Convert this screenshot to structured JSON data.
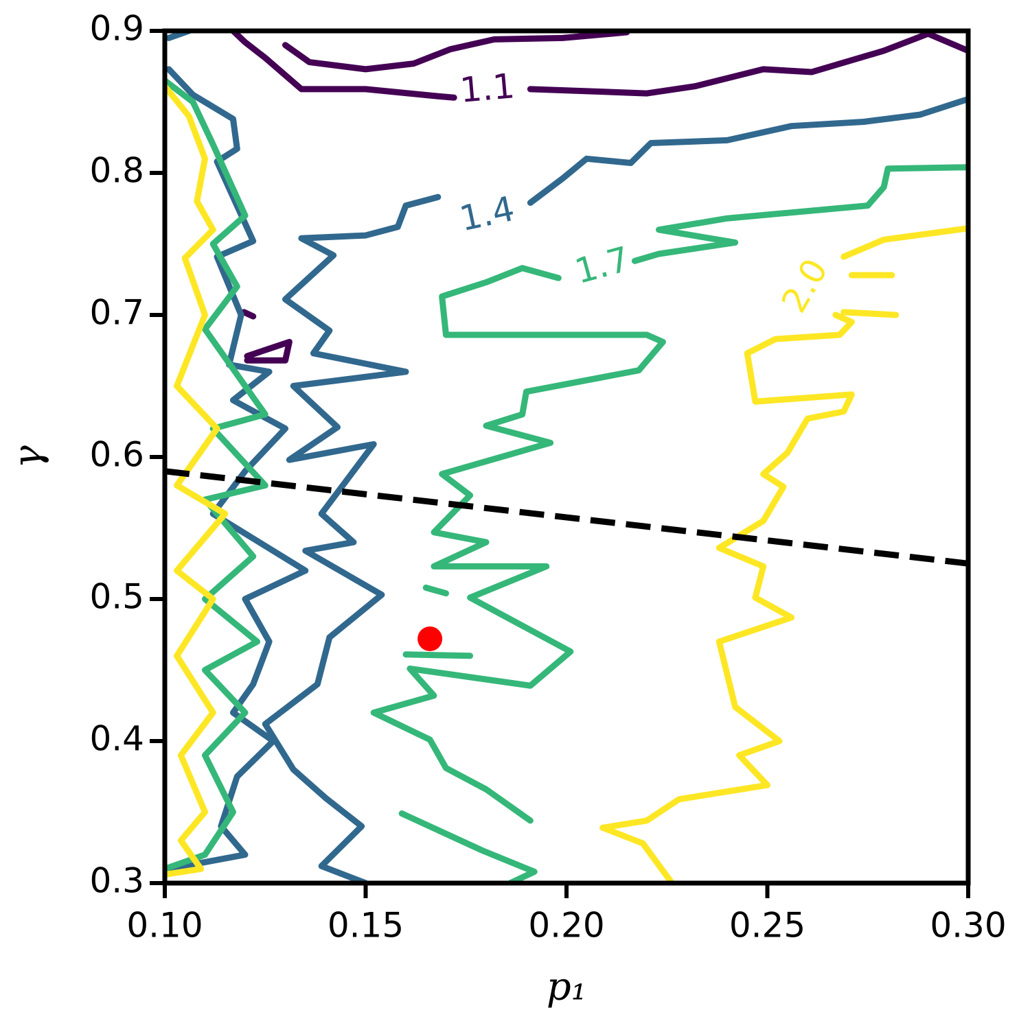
{
  "chart_data": {
    "type": "contour",
    "x_label": "p₁",
    "y_label": "γ",
    "xlim": [
      0.1,
      0.3
    ],
    "ylim": [
      0.3,
      0.9
    ],
    "xticks": [
      {
        "value": 0.1,
        "label": "0.10"
      },
      0.15,
      {
        "value": 0.2,
        "label": "0.20"
      },
      0.25,
      {
        "value": 0.3,
        "label": "0.30"
      }
    ],
    "yticks": [
      0.3,
      0.4,
      0.5,
      0.6,
      0.7,
      0.8,
      0.9
    ],
    "series": [
      {
        "name": "1.1",
        "color": "#440154",
        "x": [
          0.117,
          0.12,
          0.125,
          0.134,
          0.15,
          0.168,
          0.172,
          null,
          0.191,
          0.22,
          0.232,
          0.249,
          0.261,
          0.279,
          0.29,
          0.3,
          null,
          0.13,
          0.136,
          0.15,
          0.162,
          0.171,
          0.182,
          0.199,
          0.215,
          null,
          0.1205,
          0.131,
          0.13,
          0.1205,
          null,
          0.1197,
          0.122
        ],
        "y": [
          0.9,
          0.892,
          0.881,
          0.859,
          0.859,
          0.854,
          0.853,
          null,
          0.859,
          0.856,
          0.861,
          0.873,
          0.871,
          0.886,
          0.898,
          0.886,
          null,
          0.89,
          0.878,
          0.873,
          0.877,
          0.887,
          0.894,
          0.895,
          0.899,
          null,
          0.671,
          0.681,
          0.668,
          0.668,
          null,
          0.702,
          0.699
        ]
      },
      {
        "name": "1.4",
        "color": "#31688e",
        "x": [
          0.168,
          0.16,
          0.158,
          0.15,
          0.134,
          0.142,
          0.13,
          0.141,
          0.137,
          0.16,
          0.132,
          0.143,
          0.131,
          0.152,
          0.139,
          0.147,
          0.135,
          0.154,
          0.141,
          0.138,
          0.125,
          0.132,
          0.14,
          0.149,
          0.139,
          0.15,
          null,
          0.191,
          0.199,
          0.205,
          0.216,
          0.221,
          0.24,
          0.256,
          0.274,
          0.288,
          0.3,
          null,
          0.101,
          0.107,
          0.117,
          0.118,
          0.113,
          0.117,
          0.122,
          0.113,
          0.119,
          0.116,
          0.126,
          0.117,
          0.13,
          0.12,
          0.112,
          0.135,
          0.12,
          0.126,
          0.122,
          0.117,
          0.127,
          0.118,
          0.114,
          0.12,
          0.101,
          null,
          0.101,
          0.106
        ],
        "y": [
          0.783,
          0.777,
          0.762,
          0.756,
          0.754,
          0.742,
          0.711,
          0.689,
          0.673,
          0.66,
          0.65,
          0.621,
          0.598,
          0.609,
          0.56,
          0.54,
          0.534,
          0.503,
          0.473,
          0.44,
          0.412,
          0.38,
          0.36,
          0.34,
          0.312,
          0.3,
          null,
          0.779,
          0.796,
          0.81,
          0.807,
          0.821,
          0.823,
          0.833,
          0.836,
          0.841,
          0.852,
          null,
          0.873,
          0.855,
          0.838,
          0.817,
          0.808,
          0.783,
          0.752,
          0.741,
          0.7,
          0.665,
          0.66,
          0.64,
          0.62,
          0.59,
          0.56,
          0.52,
          0.5,
          0.47,
          0.44,
          0.42,
          0.4,
          0.375,
          0.34,
          0.32,
          0.31,
          null,
          0.895,
          0.9
        ]
      },
      {
        "name": "1.7",
        "color": "#35b779",
        "x": [
          0.3,
          0.28,
          0.279,
          0.275,
          0.24,
          0.223,
          0.242,
          0.223,
          0.217,
          null,
          0.198,
          0.189,
          0.18,
          0.169,
          0.17,
          0.22,
          0.224,
          0.218,
          0.19,
          0.189,
          0.18,
          0.196,
          0.169,
          0.176,
          0.167,
          0.18,
          0.167,
          0.195,
          0.176,
          0.201,
          0.191,
          0.161,
          0.167,
          0.152,
          0.166,
          0.17,
          0.18,
          0.191,
          null,
          0.159,
          0.179,
          0.192,
          0.186,
          null,
          0.1,
          0.107,
          0.112,
          0.12,
          0.112,
          0.118,
          0.11,
          0.125,
          0.112,
          0.125,
          0.11,
          0.122,
          0.11,
          0.123,
          0.11,
          0.12,
          0.11,
          0.117,
          0.11,
          0.1,
          null,
          0.16,
          0.176,
          null,
          0.165,
          0.17
        ],
        "y": [
          0.804,
          0.803,
          0.79,
          0.777,
          0.768,
          0.76,
          0.751,
          0.743,
          0.738,
          null,
          0.726,
          0.733,
          0.723,
          0.713,
          0.686,
          0.686,
          0.681,
          0.661,
          0.646,
          0.63,
          0.622,
          0.61,
          0.588,
          0.573,
          0.547,
          0.54,
          0.523,
          0.523,
          0.501,
          0.463,
          0.439,
          0.451,
          0.432,
          0.42,
          0.401,
          0.381,
          0.366,
          0.344,
          null,
          0.349,
          0.323,
          0.308,
          0.3,
          null,
          0.865,
          0.85,
          0.82,
          0.77,
          0.75,
          0.72,
          0.69,
          0.63,
          0.62,
          0.58,
          0.57,
          0.53,
          0.5,
          0.47,
          0.45,
          0.42,
          0.39,
          0.35,
          0.32,
          0.31,
          null,
          0.461,
          0.46,
          null,
          0.508,
          0.504
        ]
      },
      {
        "name": "2.0",
        "color": "#fde725",
        "x": [
          0.3,
          0.279,
          0.269,
          null,
          0.267,
          0.271,
          0.268,
          0.252,
          0.245,
          0.247,
          0.271,
          0.269,
          0.26,
          0.255,
          0.249,
          0.254,
          0.249,
          0.238,
          0.249,
          0.247,
          0.256,
          0.238,
          0.242,
          0.253,
          0.243,
          0.25,
          0.228,
          0.22,
          0.209,
          0.219,
          0.226,
          null,
          0.271,
          0.281,
          null,
          0.269,
          0.282,
          null,
          0.1,
          0.106,
          0.11,
          0.108,
          0.112,
          0.105,
          0.11,
          0.103,
          0.113,
          0.103,
          0.115,
          0.103,
          0.112,
          0.103,
          0.112,
          0.104,
          0.11,
          0.104,
          0.109,
          0.1
        ],
        "y": [
          0.761,
          0.753,
          0.741,
          null,
          0.7,
          0.695,
          0.686,
          0.683,
          0.673,
          0.639,
          0.644,
          0.632,
          0.627,
          0.603,
          0.588,
          0.579,
          0.555,
          0.536,
          0.523,
          0.501,
          0.487,
          0.47,
          0.424,
          0.4,
          0.39,
          0.369,
          0.359,
          0.344,
          0.339,
          0.328,
          0.301,
          null,
          0.728,
          0.728,
          null,
          0.702,
          0.7,
          null,
          0.861,
          0.84,
          0.81,
          0.78,
          0.76,
          0.74,
          0.7,
          0.65,
          0.62,
          0.58,
          0.56,
          0.52,
          0.5,
          0.46,
          0.42,
          0.39,
          0.35,
          0.33,
          0.31,
          0.306
        ]
      }
    ],
    "lines": [
      {
        "x": [
          0.1,
          0.3
        ],
        "y": [
          0.59,
          0.525
        ],
        "color": "#000000",
        "dashed": true
      }
    ],
    "points": [
      {
        "x": 0.166,
        "y": 0.472,
        "color": "#ff0000"
      }
    ]
  }
}
